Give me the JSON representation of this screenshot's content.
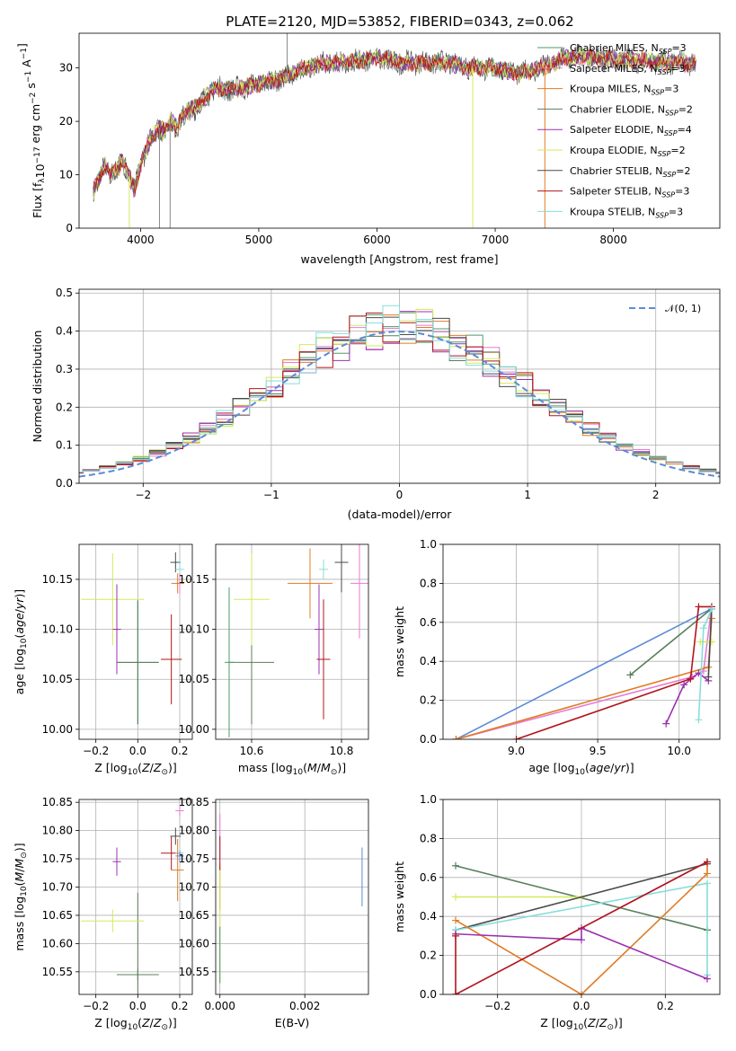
{
  "figure": {
    "title": "PLATE=2120, MJD=53852, FIBERID=0343, z=0.062"
  },
  "chart_data": [
    {
      "id": "spectrum",
      "type": "line",
      "xlabel": "wavelength [Angstrom, rest frame]",
      "ylabel_html": "Flux [fλ10⁻¹⁷ erg cm⁻² s⁻¹ A⁻¹]",
      "xlim": [
        3480,
        8900
      ],
      "ylim": [
        0,
        36.5
      ],
      "xticks": [
        4000,
        5000,
        6000,
        7000,
        8000
      ],
      "yticks": [
        0,
        10,
        20,
        30
      ],
      "envelope": {
        "x": [
          3600,
          3650,
          3700,
          3750,
          3800,
          3850,
          3900,
          3950,
          4000,
          4050,
          4100,
          4150,
          4200,
          4250,
          4300,
          4400,
          4500,
          4600,
          4800,
          5000,
          5200,
          5400,
          5600,
          5800,
          6000,
          6200,
          6400,
          6600,
          6800,
          7000,
          7200,
          7400,
          7600,
          7800,
          8000,
          8200,
          8400,
          8600,
          8700
        ],
        "y": [
          7,
          9,
          12,
          10,
          11,
          13,
          10,
          7,
          12,
          15,
          17,
          19,
          18,
          20,
          19,
          22,
          23,
          26,
          26,
          27,
          28,
          30,
          31,
          31,
          32,
          31,
          31,
          31,
          30,
          30,
          29,
          30,
          32,
          32,
          31.5,
          31.5,
          31,
          31,
          31
        ]
      },
      "spikes": [
        {
          "x": 3905,
          "y": 0
        },
        {
          "x": 4160,
          "y": 0
        },
        {
          "x": 4250,
          "y": 0
        },
        {
          "x": 5240,
          "y": 36.5
        },
        {
          "x": 6810,
          "y": 0
        },
        {
          "x": 7420,
          "y": 0
        }
      ],
      "legend": [
        {
          "pre": "Chabrier MILES, N",
          "sub": "SSP",
          "post": "=3",
          "color": "#4e9a6b"
        },
        {
          "pre": "Salpeter MILES, N",
          "sub": "SSP",
          "post": "=3",
          "color": "#e87bd2"
        },
        {
          "pre": "Kroupa MILES, N",
          "sub": "SSP",
          "post": "=3",
          "color": "#e07c25"
        },
        {
          "pre": "Chabrier ELODIE, N",
          "sub": "SSP",
          "post": "=2",
          "color": "#5b7f5c"
        },
        {
          "pre": "Salpeter ELODIE, N",
          "sub": "SSP",
          "post": "=4",
          "color": "#9b30b0"
        },
        {
          "pre": "Kroupa ELODIE, N",
          "sub": "SSP",
          "post": "=2",
          "color": "#d4ea5a"
        },
        {
          "pre": "Chabrier STELIB, N",
          "sub": "SSP",
          "post": "=2",
          "color": "#4a4a4a"
        },
        {
          "pre": "Salpeter STELIB, N",
          "sub": "SSP",
          "post": "=3",
          "color": "#b0151a"
        },
        {
          "pre": "Kroupa STELIB, N",
          "sub": "SSP",
          "post": "=3",
          "color": "#86dedb"
        }
      ]
    },
    {
      "id": "residuals",
      "type": "histogram",
      "xlabel": "(data-model)/error",
      "ylabel": "Normed distribution",
      "xlim": [
        -2.5,
        2.5
      ],
      "ylim": [
        0,
        0.51
      ],
      "xticks": [
        -2,
        -1,
        0,
        1,
        2
      ],
      "yticks": [
        0.0,
        0.1,
        0.2,
        0.3,
        0.4,
        0.5
      ],
      "legend_label": "𝒩(0, 1)",
      "legend_color": "#5b8bd8"
    },
    {
      "id": "age-vs-Z",
      "type": "scatter",
      "xlabel": "Z [log10(Z/Z⊙)]",
      "ylabel": "age  [log10(age/yr)]",
      "xlim": [
        -0.28,
        0.26
      ],
      "ylim": [
        9.99,
        10.185
      ],
      "xticks": [
        -0.2,
        0.0,
        0.2
      ],
      "yticks": [
        10.0,
        10.05,
        10.1,
        10.15
      ],
      "points": [
        {
          "x": 0.0,
          "y": 10.067,
          "xerr": 0.1,
          "yerr": 0.062,
          "color": "#4e9a6b"
        },
        {
          "x": 0.0,
          "y": 10.067,
          "xerr": 0.1,
          "yerr": 0.062,
          "color": "#5b7f5c"
        },
        {
          "x": -0.12,
          "y": 10.13,
          "xerr": 0.15,
          "yerr": 0.046,
          "color": "#d4ea5a"
        },
        {
          "x": -0.1,
          "y": 10.1,
          "xerr": 0.02,
          "yerr": 0.045,
          "color": "#9b30b0"
        },
        {
          "x": 0.16,
          "y": 10.07,
          "xerr": 0.05,
          "yerr": 0.045,
          "color": "#b0151a"
        },
        {
          "x": 0.18,
          "y": 10.167,
          "xerr": 0.025,
          "yerr": 0.01,
          "color": "#4a4a4a"
        },
        {
          "x": 0.2,
          "y": 10.16,
          "xerr": 0.02,
          "yerr": 0.01,
          "color": "#86dedb"
        },
        {
          "x": 0.2,
          "y": 10.146,
          "xerr": 0.02,
          "yerr": 0.01,
          "color": "#e87bd2"
        },
        {
          "x": 0.19,
          "y": 10.146,
          "xerr": 0.03,
          "yerr": 0.01,
          "color": "#e07c25"
        }
      ]
    },
    {
      "id": "age-vs-mass",
      "type": "scatter",
      "xlabel": "mass [log10(M/M⊙)]",
      "ylabel": "",
      "xlim": [
        10.52,
        10.86
      ],
      "ylim": [
        9.99,
        10.185
      ],
      "xticks": [
        10.6,
        10.8
      ],
      "yticks": [
        10.0,
        10.05,
        10.1,
        10.15
      ],
      "points": [
        {
          "x": 10.6,
          "y": 10.067,
          "xerr": 0.05,
          "yerr": 0.062,
          "color": "#5b7f5c"
        },
        {
          "x": 10.55,
          "y": 10.067,
          "xerr": 0.01,
          "yerr": 0.075,
          "color": "#4e9a6b"
        },
        {
          "x": 10.6,
          "y": 10.13,
          "xerr": 0.04,
          "yerr": 0.046,
          "color": "#d4ea5a"
        },
        {
          "x": 10.75,
          "y": 10.1,
          "xerr": 0.01,
          "yerr": 0.045,
          "color": "#9b30b0"
        },
        {
          "x": 10.76,
          "y": 10.07,
          "xerr": 0.015,
          "yerr": 0.06,
          "color": "#b0151a"
        },
        {
          "x": 10.8,
          "y": 10.167,
          "xerr": 0.015,
          "yerr": 0.03,
          "color": "#4a4a4a"
        },
        {
          "x": 10.76,
          "y": 10.16,
          "xerr": 0.01,
          "yerr": 0.01,
          "color": "#86dedb"
        },
        {
          "x": 10.84,
          "y": 10.146,
          "xerr": 0.02,
          "yerr": 0.055,
          "color": "#e87bd2"
        },
        {
          "x": 10.73,
          "y": 10.146,
          "xerr": 0.05,
          "yerr": 0.035,
          "color": "#e07c25"
        }
      ]
    },
    {
      "id": "mass-weight-vs-age",
      "type": "line",
      "xlabel": "age  [log10(age/yr)]",
      "ylabel": "mass weight",
      "xlim": [
        8.55,
        10.25
      ],
      "ylim": [
        0,
        1.0
      ],
      "xticks": [
        9.0,
        9.5,
        10.0
      ],
      "yticks": [
        0.0,
        0.2,
        0.4,
        0.6,
        0.8,
        1.0
      ],
      "series": [
        {
          "color": "#5b8bd8",
          "x": [
            8.63,
            10.2
          ],
          "y": [
            0.0,
            0.67
          ]
        },
        {
          "color": "#5b7f5c",
          "x": [
            9.7,
            10.2
          ],
          "y": [
            0.33,
            0.67
          ]
        },
        {
          "color": "#e87bd2",
          "x": [
            8.63,
            10.08,
            10.15,
            10.2
          ],
          "y": [
            0.0,
            0.32,
            0.35,
            0.68
          ]
        },
        {
          "color": "#e07c25",
          "x": [
            8.63,
            10.18,
            10.2
          ],
          "y": [
            0.0,
            0.37,
            0.62
          ]
        },
        {
          "color": "#9b30b0",
          "x": [
            9.92,
            10.03,
            10.12,
            10.18
          ],
          "y": [
            0.08,
            0.28,
            0.34,
            0.3
          ]
        },
        {
          "color": "#d4ea5a",
          "x": [
            10.13,
            10.2
          ],
          "y": [
            0.5,
            0.5
          ]
        },
        {
          "color": "#4a4a4a",
          "x": [
            10.18,
            10.2
          ],
          "y": [
            0.32,
            0.67
          ]
        },
        {
          "color": "#b0151a",
          "x": [
            9.0,
            10.07,
            10.12,
            10.2
          ],
          "y": [
            0.0,
            0.31,
            0.68,
            0.68
          ]
        },
        {
          "color": "#86dedb",
          "x": [
            10.12,
            10.15,
            10.2
          ],
          "y": [
            0.1,
            0.57,
            0.67
          ]
        }
      ]
    },
    {
      "id": "mass-vs-Z",
      "type": "scatter",
      "xlabel": "Z [log10(Z/Z⊙)]",
      "ylabel": "mass [log10(M/M⊙)]",
      "xlim": [
        -0.28,
        0.26
      ],
      "ylim": [
        10.51,
        10.855
      ],
      "xticks": [
        -0.2,
        0.0,
        0.2
      ],
      "yticks": [
        10.55,
        10.6,
        10.65,
        10.7,
        10.75,
        10.8,
        10.85
      ],
      "points": [
        {
          "x": 0.0,
          "y": 10.545,
          "xerr": 0.1,
          "yerr": 0.01,
          "color": "#4e9a6b"
        },
        {
          "x": 0.0,
          "y": 10.545,
          "xerr": 0.1,
          "yerr": 0.145,
          "color": "#5b7f5c"
        },
        {
          "x": -0.12,
          "y": 10.64,
          "xerr": 0.15,
          "yerr": 0.02,
          "color": "#d4ea5a"
        },
        {
          "x": -0.1,
          "y": 10.745,
          "xerr": 0.02,
          "yerr": 0.025,
          "color": "#9b30b0"
        },
        {
          "x": 0.16,
          "y": 10.76,
          "xerr": 0.05,
          "yerr": 0.03,
          "color": "#b0151a"
        },
        {
          "x": 0.18,
          "y": 10.79,
          "xerr": 0.025,
          "yerr": 0.015,
          "color": "#4a4a4a"
        },
        {
          "x": 0.2,
          "y": 10.76,
          "xerr": 0.02,
          "yerr": 0.01,
          "color": "#86dedb"
        },
        {
          "x": 0.2,
          "y": 10.835,
          "xerr": 0.02,
          "yerr": 0.01,
          "color": "#e87bd2"
        },
        {
          "x": 0.19,
          "y": 10.73,
          "xerr": 0.03,
          "yerr": 0.055,
          "color": "#e07c25"
        },
        {
          "x": 0.2,
          "y": 10.755,
          "xerr": 0.02,
          "yerr": 0.01,
          "color": "#5b8bd8"
        }
      ]
    },
    {
      "id": "mass-vs-ebv",
      "type": "scatter",
      "xlabel": "E(B-V)",
      "ylabel": "",
      "xlim": [
        -0.0001,
        0.0035
      ],
      "ylim": [
        10.51,
        10.855
      ],
      "xticks": [
        0.0,
        0.002
      ],
      "yticks": [
        10.55,
        10.6,
        10.65,
        10.7,
        10.75,
        10.8,
        10.85
      ],
      "points": [
        {
          "x": 0.00335,
          "y": 10.718,
          "xerr": 0.0,
          "yerr": 0.052,
          "color": "#5b8bd8"
        },
        {
          "x": 0.0,
          "y": 10.79,
          "xerr": 0.0,
          "yerr": 0.04,
          "color": "#e87bd2"
        },
        {
          "x": 0.0,
          "y": 10.7,
          "xerr": 0.0,
          "yerr": 0.04,
          "color": "#e07c25"
        },
        {
          "x": 0.0,
          "y": 10.63,
          "xerr": 0.0,
          "yerr": 0.1,
          "color": "#d4ea5a"
        },
        {
          "x": 0.0,
          "y": 10.76,
          "xerr": 0.0,
          "yerr": 0.03,
          "color": "#b0151a"
        },
        {
          "x": 0.0,
          "y": 10.58,
          "xerr": 0.0,
          "yerr": 0.05,
          "color": "#4e9a6b"
        }
      ]
    },
    {
      "id": "mass-weight-vs-Z",
      "type": "line",
      "xlabel": "Z [log10(Z/Z⊙)]",
      "ylabel": "mass weight",
      "xlim": [
        -0.33,
        0.33
      ],
      "ylim": [
        0,
        1.0
      ],
      "xticks": [
        -0.2,
        0.0,
        0.2
      ],
      "yticks": [
        0.0,
        0.2,
        0.4,
        0.6,
        0.8,
        1.0
      ],
      "series": [
        {
          "color": "#5b7f5c",
          "x": [
            -0.3,
            0.3,
            0.3
          ],
          "y": [
            0.66,
            0.33,
            0.33
          ]
        },
        {
          "color": "#d4ea5a",
          "x": [
            -0.3,
            0.0
          ],
          "y": [
            0.5,
            0.5
          ]
        },
        {
          "color": "#4a4a4a",
          "x": [
            -0.3,
            0.3
          ],
          "y": [
            0.33,
            0.67
          ]
        },
        {
          "color": "#86dedb",
          "x": [
            -0.3,
            0.3,
            0.3
          ],
          "y": [
            0.33,
            0.57,
            0.1
          ]
        },
        {
          "color": "#e87bd2",
          "x": [
            -0.3,
            0.3
          ],
          "y": [
            0.0,
            0.68
          ]
        },
        {
          "color": "#e07c25",
          "x": [
            -0.3,
            0.0,
            0.3,
            0.3
          ],
          "y": [
            0.38,
            0.0,
            0.62,
            0.68
          ]
        },
        {
          "color": "#9b30b0",
          "x": [
            -0.3,
            0.0,
            0.0,
            0.3
          ],
          "y": [
            0.31,
            0.28,
            0.34,
            0.08
          ]
        },
        {
          "color": "#b0151a",
          "x": [
            -0.3,
            -0.3,
            0.3
          ],
          "y": [
            0.3,
            0.0,
            0.68
          ]
        }
      ]
    }
  ]
}
